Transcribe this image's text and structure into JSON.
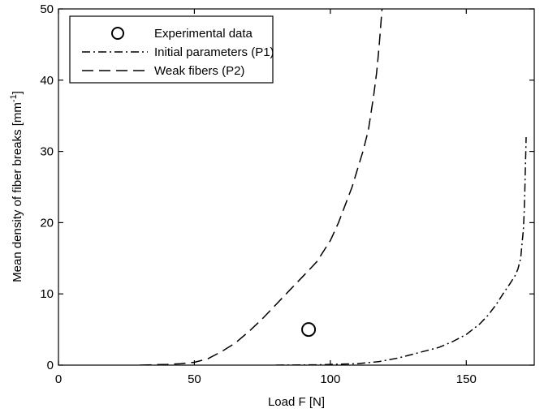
{
  "chart_data": {
    "type": "line",
    "title": "",
    "xlabel": "Load F [N]",
    "ylabel": "Mean density of fiber breaks [mm",
    "ylabel_exponent": "-1",
    "ylabel_close": "]",
    "xlim": [
      0,
      175
    ],
    "ylim": [
      0,
      50
    ],
    "xticks": [
      0,
      50,
      100,
      150
    ],
    "yticks": [
      0,
      10,
      20,
      30,
      40,
      50
    ],
    "grid": false,
    "legend_position": "top-left",
    "series": [
      {
        "name": "Experimental data",
        "style": "circle-marker",
        "x": [
          92
        ],
        "y": [
          5
        ]
      },
      {
        "name": "Initial parameters (P1)",
        "style": "dash-dot",
        "x": [
          80,
          95,
          110,
          118,
          125,
          132,
          140,
          145,
          150,
          155,
          158,
          161,
          164,
          166,
          168,
          169,
          170,
          170.5,
          171,
          171.3,
          171.5,
          171.7,
          171.9,
          172
        ],
        "y": [
          0,
          0.05,
          0.2,
          0.5,
          1.0,
          1.7,
          2.5,
          3.3,
          4.3,
          5.8,
          7.0,
          8.5,
          10.3,
          11.4,
          12.6,
          13.5,
          15.0,
          17.0,
          19.0,
          21.5,
          24.0,
          27.0,
          30.0,
          32.0
        ]
      },
      {
        "name": "Weak fibers (P2)",
        "style": "dash",
        "x": [
          30,
          40,
          45,
          50,
          55,
          60,
          65,
          70,
          75,
          80,
          85,
          90,
          95,
          100,
          103,
          105,
          108,
          110,
          112,
          114,
          115,
          116,
          117,
          117.5,
          118,
          118.5,
          119
        ],
        "y": [
          0,
          0.1,
          0.2,
          0.4,
          0.9,
          1.9,
          3.1,
          4.7,
          6.5,
          8.5,
          10.5,
          12.5,
          14.5,
          17.5,
          20.0,
          22.0,
          25.0,
          27.5,
          30.0,
          33.0,
          35.5,
          38.0,
          41.0,
          43.0,
          45.0,
          47.5,
          50.0
        ]
      }
    ]
  }
}
